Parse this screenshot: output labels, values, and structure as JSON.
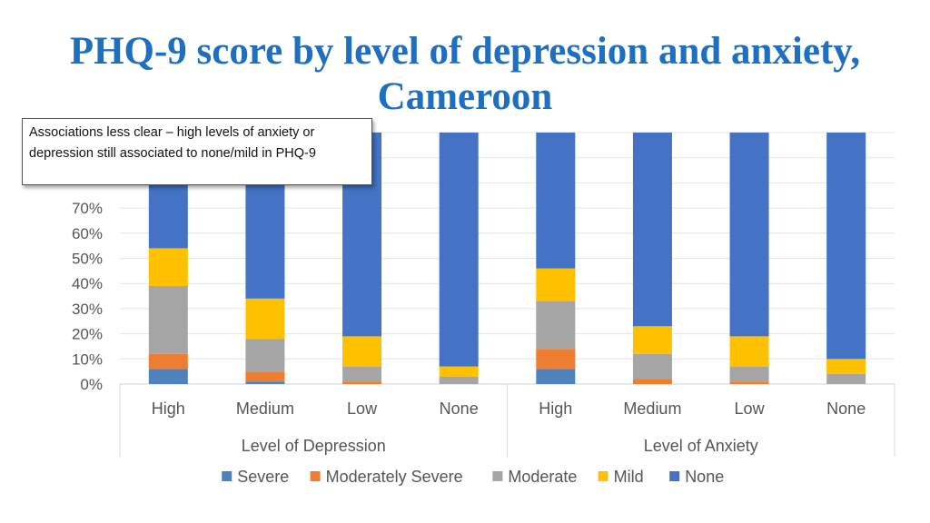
{
  "title": "PHQ-9 score by level of depression and anxiety, Cameroon",
  "callout": "Associations less clear – high levels of anxiety or depression still associated to none/mild  in PHQ-9",
  "chart_data": {
    "type": "bar",
    "stacked": true,
    "ylim": [
      0,
      100
    ],
    "y_ticks": [
      "0%",
      "10%",
      "20%",
      "30%",
      "40%",
      "50%",
      "60%",
      "70%"
    ],
    "groups": [
      {
        "label": "Level of Depression",
        "categories": [
          "High",
          "Medium",
          "Low",
          "None"
        ]
      },
      {
        "label": "Level of Anxiety",
        "categories": [
          "High",
          "Medium",
          "Low",
          "None"
        ]
      }
    ],
    "categories": [
      "High",
      "Medium",
      "Low",
      "None",
      "High",
      "Medium",
      "Low",
      "None"
    ],
    "series": [
      {
        "name": "Severe",
        "color": "#4f81bd",
        "values": [
          6,
          1,
          0,
          0,
          6,
          0,
          0,
          0
        ]
      },
      {
        "name": "Moderately Severe",
        "color": "#ed7d31",
        "values": [
          6,
          4,
          1,
          0,
          8,
          2,
          1,
          0
        ]
      },
      {
        "name": "Moderate",
        "color": "#a5a5a5",
        "values": [
          27,
          13,
          6,
          3,
          19,
          10,
          6,
          4
        ]
      },
      {
        "name": "Mild",
        "color": "#ffc000",
        "values": [
          15,
          16,
          12,
          4,
          13,
          11,
          12,
          6
        ]
      },
      {
        "name": "None",
        "color": "#4472c4",
        "values": [
          46,
          66,
          81,
          93,
          54,
          77,
          81,
          90
        ]
      }
    ],
    "legend_position": "bottom",
    "grid": true
  }
}
